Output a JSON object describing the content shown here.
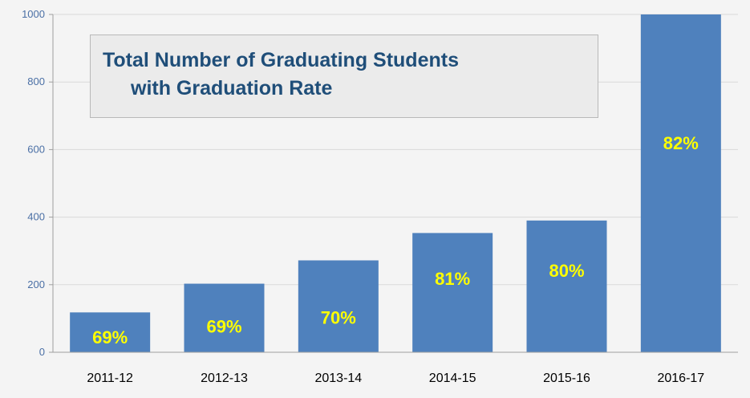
{
  "chart_data": {
    "type": "bar",
    "title_lines": [
      "Total Number of Graduating Students",
      "with Graduation Rate"
    ],
    "categories": [
      "2011-12",
      "2012-13",
      "2013-14",
      "2014-15",
      "2015-16",
      "2016-17"
    ],
    "series": [
      {
        "values": [
          118,
          203,
          272,
          353,
          390,
          1000
        ]
      }
    ],
    "data_labels": [
      "69%",
      "69%",
      "70%",
      "81%",
      "80%",
      "82%"
    ],
    "yticks": [
      0,
      200,
      400,
      600,
      800,
      1000
    ],
    "ylim": [
      0,
      1000
    ],
    "grid": "horizontal",
    "xlabel": "",
    "ylabel": "",
    "colors": {
      "bar": "#4f81bd",
      "data_label": "#ffff00",
      "title": "#1f4e79",
      "grid": "#d9d9d9",
      "tick_label": "#4a6fa5"
    }
  }
}
